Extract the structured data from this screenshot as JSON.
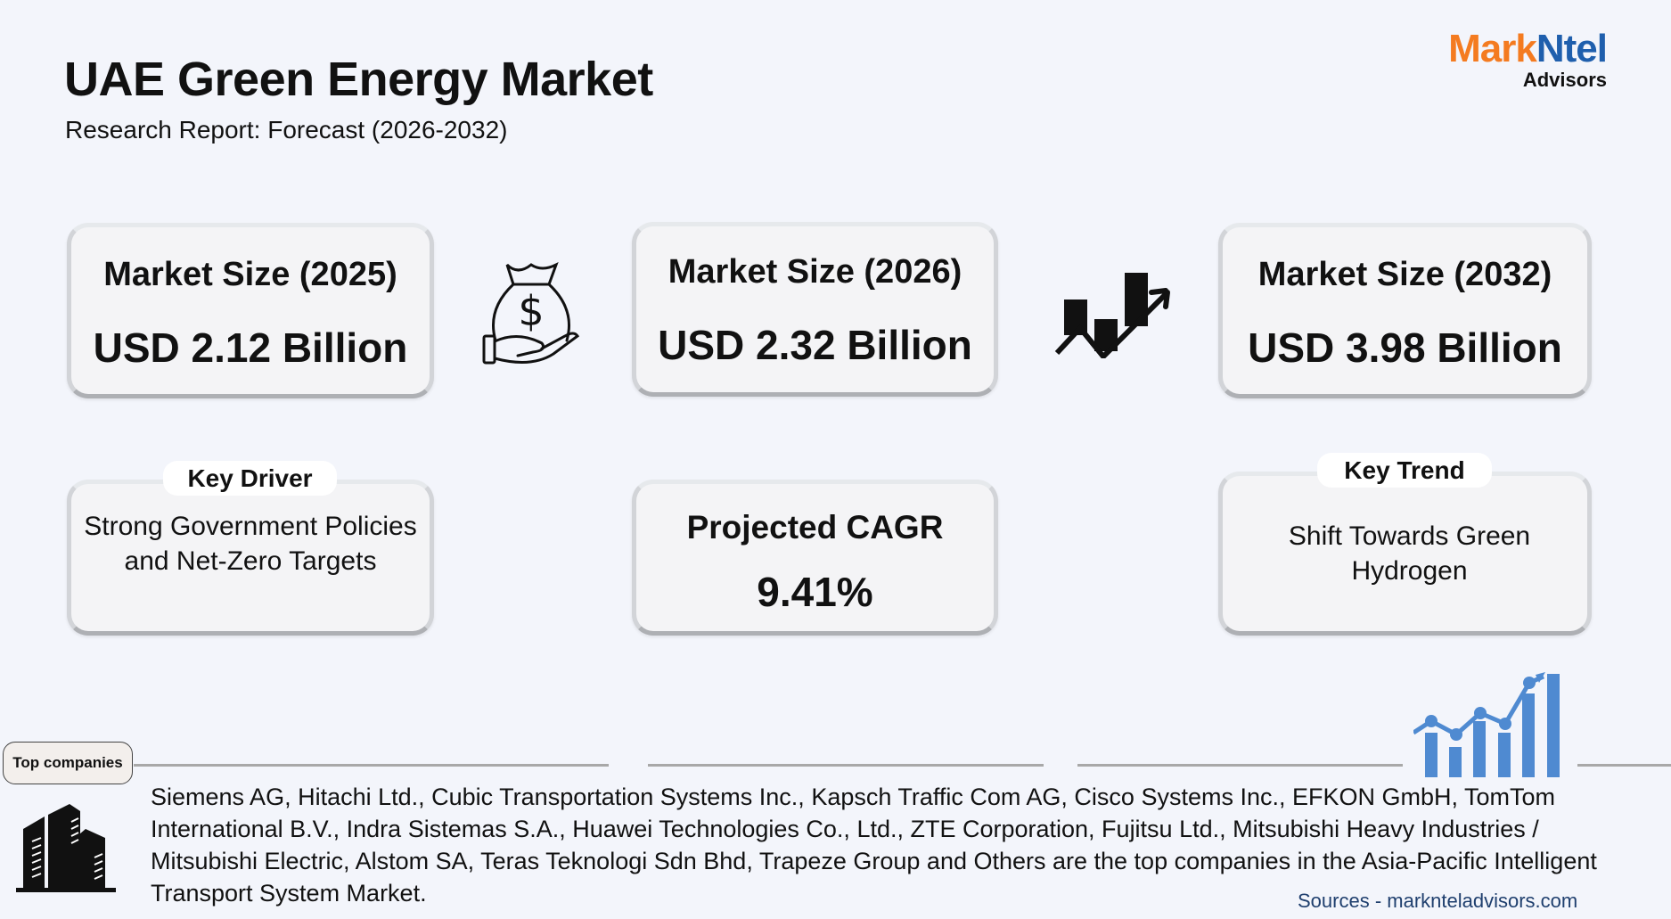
{
  "header": {
    "title": "UAE Green Energy Market",
    "subtitle": "Research Report: Forecast (2026-2032)"
  },
  "logo": {
    "part1": "Mark",
    "part2": "Ntel",
    "part3": "Advisors",
    "colors": {
      "orange": "#f47b20",
      "blue": "#1f5fad"
    }
  },
  "cards": [
    {
      "label": "Market Size (2025)",
      "value": "USD 2.12 Billion"
    },
    {
      "label": "Market Size (2026)",
      "value": "USD 2.32 Billion"
    },
    {
      "label": "Market Size (2032)",
      "value": "USD 3.98 Billion"
    }
  ],
  "key_driver": {
    "badge": "Key Driver",
    "text": "Strong Government Policies and Net-Zero Targets"
  },
  "cagr": {
    "label": "Projected CAGR",
    "value": "9.41%"
  },
  "key_trend": {
    "badge": "Key Trend",
    "text": "Shift Towards Green Hydrogen"
  },
  "icons": {
    "money": "money-bag-hand-icon",
    "trend": "growth-chart-arrow-icon",
    "bars": "bar-chart-growth-icon",
    "buildings": "office-buildings-icon",
    "accent": "#4f8ad1"
  },
  "footer": {
    "top_label": "Top companies",
    "companies": "Siemens AG, Hitachi Ltd., Cubic Transportation Systems Inc., Kapsch Traffic Com AG, Cisco Systems Inc., EFKON GmbH, TomTom International B.V., Indra Sistemas S.A., Huawei Technologies Co., Ltd., ZTE Corporation, Fujitsu Ltd., Mitsubishi Heavy Industries / Mitsubishi Electric, Alstom SA, Teras Teknologi Sdn Bhd, Trapeze Group and Others are the top companies in the Asia-Pacific Intelligent Transport System Market.",
    "sources": "Sources - marknteladvisors.com"
  }
}
